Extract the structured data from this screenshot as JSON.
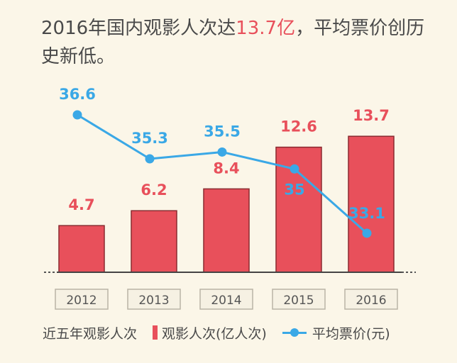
{
  "headline": {
    "before": "2016年国内观影人次达",
    "highlight": "13.7亿",
    "after": "，平均票价创历史新低。"
  },
  "colors": {
    "bar": "#e8505b",
    "line": "#3aa8e6",
    "text": "#4a4a4a",
    "background": "#fbf6e8"
  },
  "chart_data": {
    "type": "bar",
    "categories": [
      "2012",
      "2013",
      "2014",
      "2015",
      "2016"
    ],
    "series": [
      {
        "name": "观影人次(亿人次)",
        "type": "bar",
        "values": [
          4.7,
          6.2,
          8.4,
          12.6,
          13.7
        ]
      },
      {
        "name": "平均票价(元)",
        "type": "line",
        "values": [
          36.6,
          35.3,
          35.5,
          35,
          33.1
        ]
      }
    ],
    "value_labels": {
      "bar": [
        "4.7",
        "6.2",
        "8.4",
        "12.6",
        "13.7"
      ],
      "line": [
        "36.6",
        "35.3",
        "35.5",
        "35",
        "33.1"
      ]
    },
    "legend": {
      "caption": "近五年观影人次",
      "placement": "bottom"
    }
  }
}
